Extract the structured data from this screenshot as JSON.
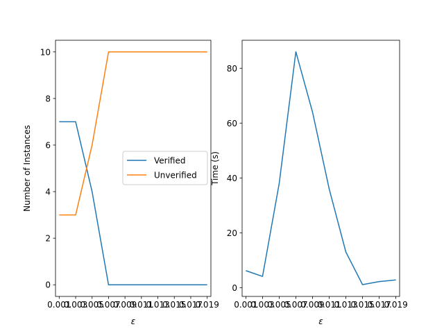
{
  "chart_data": [
    {
      "type": "line",
      "xlabel": "ε",
      "ylabel": "Number of Instances",
      "x": [
        0.001,
        0.003,
        0.005,
        0.007,
        0.009,
        0.011,
        0.013,
        0.015,
        0.017,
        0.019
      ],
      "xtick_labels": [
        "0.001",
        "0.003",
        "0.005",
        "0.007",
        "0.009",
        "0.011",
        "0.013",
        "0.015",
        "0.017",
        "0.019"
      ],
      "xlim": [
        0.00055,
        0.01945
      ],
      "ylim": [
        -0.5,
        10.5
      ],
      "yticks": [
        0,
        2,
        4,
        6,
        8,
        10
      ],
      "ytick_labels": [
        "0",
        "2",
        "4",
        "6",
        "8",
        "10"
      ],
      "series": [
        {
          "name": "Verified",
          "color": "#1f77b4",
          "values": [
            7,
            7,
            4,
            0,
            0,
            0,
            0,
            0,
            0,
            0
          ]
        },
        {
          "name": "Unverified",
          "color": "#ff7f0e",
          "values": [
            3,
            3,
            6,
            10,
            10,
            10,
            10,
            10,
            10,
            10
          ]
        }
      ],
      "legend": "center-right",
      "grid": false
    },
    {
      "type": "line",
      "xlabel": "ε",
      "ylabel": "Time (s)",
      "x": [
        0.001,
        0.003,
        0.005,
        0.007,
        0.009,
        0.011,
        0.013,
        0.015,
        0.017,
        0.019
      ],
      "xtick_labels": [
        "0.001",
        "0.003",
        "0.005",
        "0.007",
        "0.009",
        "0.011",
        "0.013",
        "0.015",
        "0.017",
        "0.019"
      ],
      "xlim": [
        0.00055,
        0.01945
      ],
      "ylim": [
        -3.2,
        90.2
      ],
      "yticks": [
        0,
        20,
        40,
        60,
        80
      ],
      "ytick_labels": [
        "0",
        "20",
        "40",
        "60",
        "80"
      ],
      "series": [
        {
          "color": "#1f77b4",
          "values": [
            6.2,
            4.1,
            38,
            86,
            64,
            36,
            13,
            1.1,
            2.2,
            2.8
          ]
        }
      ],
      "grid": false
    }
  ]
}
